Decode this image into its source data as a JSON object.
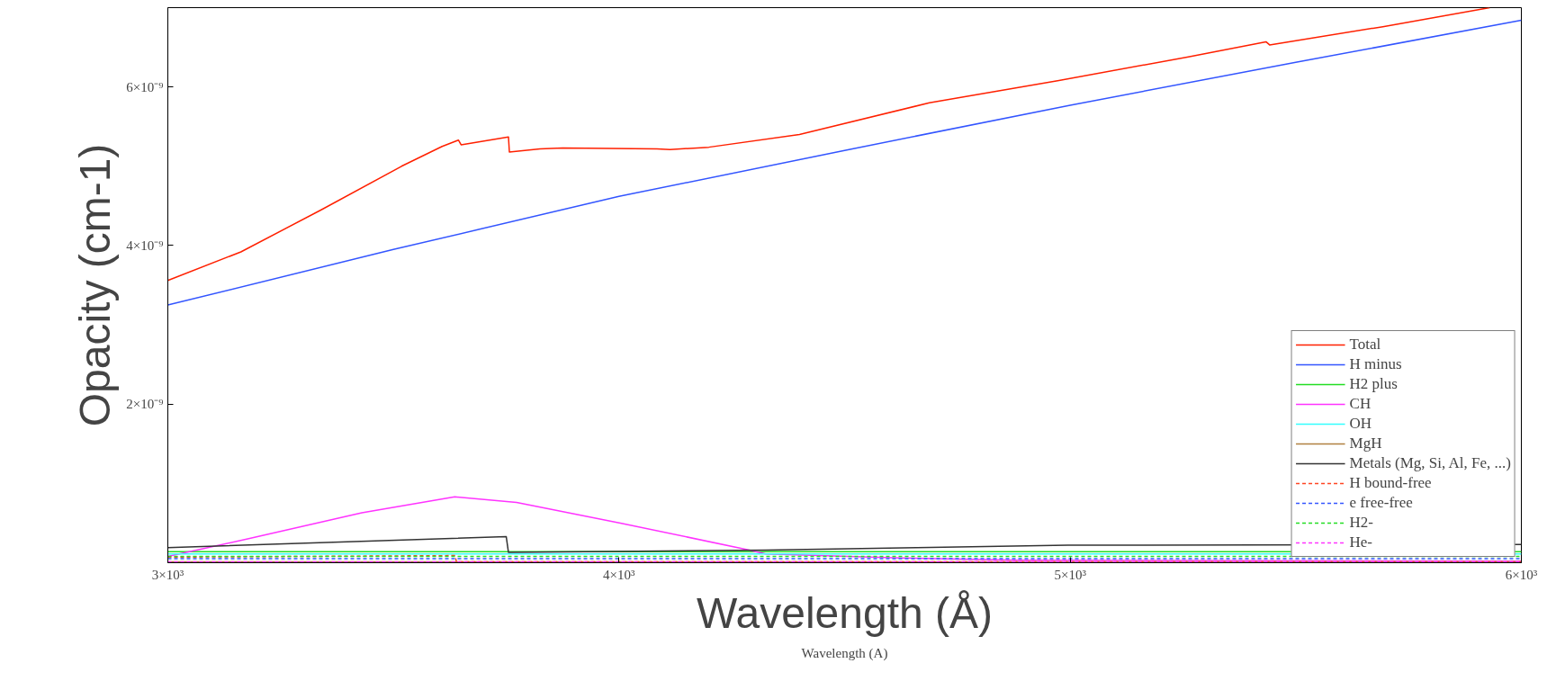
{
  "chart_data": {
    "type": "line",
    "xlabel": "Wavelength (Å)",
    "ylabel": "Opacity (cm-1)",
    "annotations": [
      "Wavelength (A)"
    ],
    "xlim": [
      3000,
      6000
    ],
    "ylim": [
      0,
      7e-09
    ],
    "xticks": [
      {
        "value": 3000,
        "label": "3×10³"
      },
      {
        "value": 4000,
        "label": "4×10³"
      },
      {
        "value": 5000,
        "label": "5×10³"
      },
      {
        "value": 6000,
        "label": "6×10³"
      }
    ],
    "yticks": [
      {
        "value": 2e-09,
        "label": "2×10⁻⁹"
      },
      {
        "value": 4e-09,
        "label": "4×10⁻⁹"
      },
      {
        "value": 6e-09,
        "label": "6×10⁻⁹"
      }
    ],
    "grid": false,
    "legend": "bottom right",
    "marker": "none",
    "series": [
      {
        "name": "Total",
        "color": "#ff2000",
        "line_style": "solid",
        "x": [
          3000,
          3162,
          3340,
          3518,
          3608,
          3644,
          3650,
          3755,
          3757,
          3825,
          3875,
          4084,
          4113,
          4199,
          4400,
          4688,
          4975,
          5262,
          5434,
          5442,
          5693,
          5930
        ],
        "values": [
          3.56e-09,
          3.92e-09,
          4.45e-09,
          5e-09,
          5.25e-09,
          5.33e-09,
          5.27e-09,
          5.37e-09,
          5.18e-09,
          5.22e-09,
          5.23e-09,
          5.22e-09,
          5.21e-09,
          5.24e-09,
          5.4e-09,
          5.8e-09,
          6.08e-09,
          6.38e-09,
          6.57e-09,
          6.53e-09,
          6.76e-09,
          7e-09
        ]
      },
      {
        "name": "H minus",
        "color": "#3355ff",
        "line_style": "solid",
        "x": [
          3000,
          3500,
          4000,
          4500,
          5000,
          5500,
          6000
        ],
        "values": [
          3.25e-09,
          3.95e-09,
          4.62e-09,
          5.2e-09,
          5.77e-09,
          6.31e-09,
          6.84e-09
        ]
      },
      {
        "name": "H2 plus",
        "color": "#22dd22",
        "line_style": "solid",
        "x": [
          3000,
          6000
        ],
        "values": [
          1.4e-10,
          1.4e-10
        ]
      },
      {
        "name": "CH",
        "color": "#ff33ff",
        "line_style": "solid",
        "x": [
          3000,
          3177,
          3430,
          3636,
          3773,
          4003,
          4289,
          4325,
          4626,
          4883,
          6000
        ],
        "values": [
          8e-11,
          3e-10,
          6.3e-10,
          8.3e-10,
          7.6e-10,
          5e-10,
          1.6e-10,
          1.1e-10,
          6e-11,
          3e-11,
          2e-11
        ]
      },
      {
        "name": "OH",
        "color": "#33ffff",
        "line_style": "solid",
        "x": [
          3000,
          6000
        ],
        "values": [
          1.1e-10,
          1.1e-10
        ]
      },
      {
        "name": "MgH",
        "color": "#b08040",
        "line_style": "solid",
        "x": [
          3000,
          6000
        ],
        "values": [
          1e-11,
          1e-11
        ]
      },
      {
        "name": "Metals (Mg, Si, Al, Fe, ...)",
        "color": "#333333",
        "line_style": "solid",
        "x": [
          3000,
          3750,
          3755,
          4325,
          4660,
          4995,
          6000
        ],
        "values": [
          1.9e-10,
          3.3e-10,
          1.3e-10,
          1.6e-10,
          1.9e-10,
          2.2e-10,
          2.3e-10
        ]
      },
      {
        "name": "H bound-free",
        "color": "#ff4422",
        "line_style": "dashed",
        "x": [
          3000,
          3636,
          3640,
          6000
        ],
        "values": [
          7e-11,
          9e-11,
          1e-11,
          1e-11
        ]
      },
      {
        "name": "e free-free",
        "color": "#3355ff",
        "line_style": "dashed",
        "x": [
          3000,
          6000
        ],
        "values": [
          5e-11,
          5e-11
        ]
      },
      {
        "name": "H2-",
        "color": "#22dd22",
        "line_style": "dashed",
        "x": [
          3000,
          6000
        ],
        "values": [
          8e-11,
          8e-11
        ]
      },
      {
        "name": "He-",
        "color": "#ff33ff",
        "line_style": "dashed",
        "x": [
          3000,
          6000
        ],
        "values": [
          1e-11,
          1e-11
        ]
      }
    ]
  }
}
